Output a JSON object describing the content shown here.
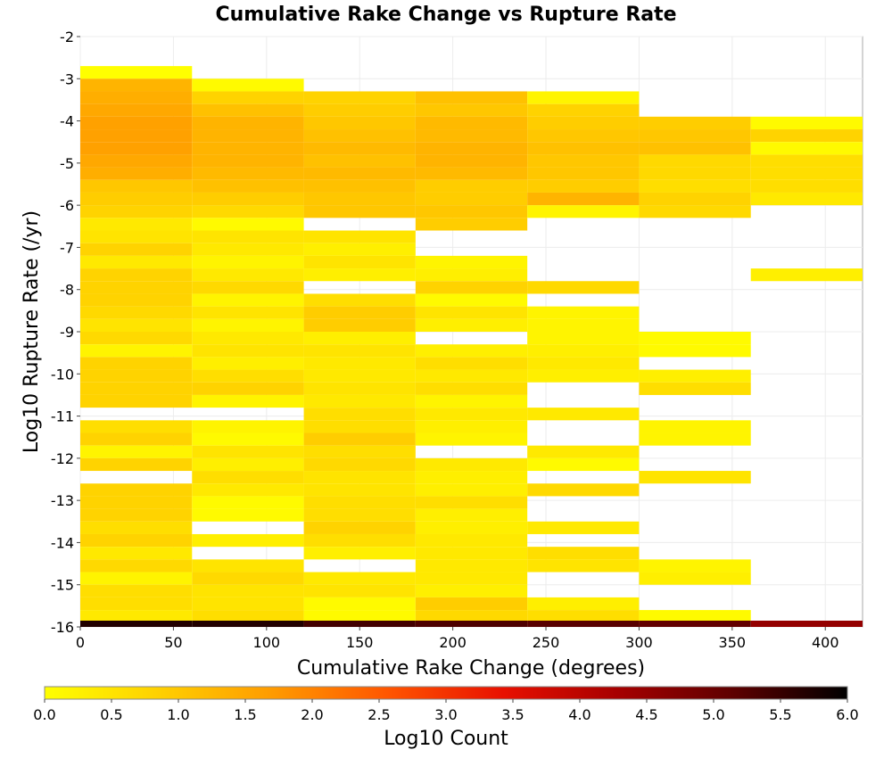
{
  "chart_data": {
    "type": "heatmap",
    "title": "Cumulative Rake Change vs Rupture Rate",
    "xlabel": "Cumulative Rake Change (degrees)",
    "ylabel": "Log10 Rupture Rate (/yr)",
    "xlim": [
      0,
      420
    ],
    "ylim": [
      -16,
      -2
    ],
    "xticks": [
      0,
      50,
      100,
      150,
      200,
      250,
      300,
      350,
      400
    ],
    "yticks": [
      -2,
      -3,
      -4,
      -5,
      -6,
      -7,
      -8,
      -9,
      -10,
      -11,
      -12,
      -13,
      -14,
      -15,
      -16
    ],
    "x_bin_width": 60,
    "y_bin_height": 0.3,
    "colorbar": {
      "label": "Log10 Count",
      "range": [
        0,
        6
      ],
      "ticks": [
        "0.0",
        "0.5",
        "1.0",
        "1.5",
        "2.0",
        "2.5",
        "3.0",
        "3.5",
        "4.0",
        "4.5",
        "5.0",
        "5.5",
        "6.0"
      ],
      "colors": [
        "#ffff00",
        "#ffd000",
        "#ff9a00",
        "#ff5500",
        "#e81000",
        "#a60000",
        "#5e0000",
        "#000000"
      ]
    },
    "grid": true,
    "columns": [
      {
        "x_start": 0,
        "cells": [
          {
            "y": -3.0,
            "z": 0.0
          },
          {
            "y": -3.3,
            "z": 1.3
          },
          {
            "y": -3.6,
            "z": 1.4
          },
          {
            "y": -3.9,
            "z": 1.5
          },
          {
            "y": -4.2,
            "z": 1.6
          },
          {
            "y": -4.5,
            "z": 1.6
          },
          {
            "y": -4.8,
            "z": 1.6
          },
          {
            "y": -5.1,
            "z": 1.5
          },
          {
            "y": -5.4,
            "z": 1.4
          },
          {
            "y": -5.7,
            "z": 1.0
          },
          {
            "y": -6.0,
            "z": 0.9
          },
          {
            "y": -6.3,
            "z": 0.8
          },
          {
            "y": -6.6,
            "z": 0.4
          },
          {
            "y": -6.9,
            "z": 0.5
          },
          {
            "y": -7.2,
            "z": 0.8
          },
          {
            "y": -7.5,
            "z": 0.4
          },
          {
            "y": -7.8,
            "z": 0.8
          },
          {
            "y": -8.1,
            "z": 0.8
          },
          {
            "y": -8.4,
            "z": 0.8
          },
          {
            "y": -8.7,
            "z": 0.7
          },
          {
            "y": -9.0,
            "z": 0.5
          },
          {
            "y": -9.3,
            "z": 0.7
          },
          {
            "y": -9.6,
            "z": 0.2
          },
          {
            "y": -9.9,
            "z": 0.8
          },
          {
            "y": -10.2,
            "z": 0.8
          },
          {
            "y": -10.5,
            "z": 0.8
          },
          {
            "y": -10.8,
            "z": 0.8
          },
          {
            "y": -11.4,
            "z": 0.6
          },
          {
            "y": -11.7,
            "z": 0.8
          },
          {
            "y": -12.0,
            "z": 0.2
          },
          {
            "y": -12.3,
            "z": 0.8
          },
          {
            "y": -12.9,
            "z": 0.8
          },
          {
            "y": -13.2,
            "z": 0.8
          },
          {
            "y": -13.5,
            "z": 0.8
          },
          {
            "y": -13.8,
            "z": 0.6
          },
          {
            "y": -14.1,
            "z": 0.8
          },
          {
            "y": -14.4,
            "z": 0.4
          },
          {
            "y": -14.7,
            "z": 0.7
          },
          {
            "y": -15.0,
            "z": 0.2
          },
          {
            "y": -15.3,
            "z": 0.6
          },
          {
            "y": -15.6,
            "z": 0.6
          },
          {
            "y": -15.9,
            "z": 0.4
          },
          {
            "y": -16.0,
            "z": 5.7
          }
        ]
      },
      {
        "x_start": 60,
        "cells": [
          {
            "y": -3.3,
            "z": 0.1
          },
          {
            "y": -3.6,
            "z": 0.8
          },
          {
            "y": -3.9,
            "z": 1.1
          },
          {
            "y": -4.2,
            "z": 1.3
          },
          {
            "y": -4.5,
            "z": 1.3
          },
          {
            "y": -4.8,
            "z": 1.3
          },
          {
            "y": -5.1,
            "z": 1.3
          },
          {
            "y": -5.4,
            "z": 1.2
          },
          {
            "y": -5.7,
            "z": 1.1
          },
          {
            "y": -6.0,
            "z": 0.9
          },
          {
            "y": -6.3,
            "z": 0.7
          },
          {
            "y": -6.6,
            "z": 0.1
          },
          {
            "y": -6.9,
            "z": 0.5
          },
          {
            "y": -7.2,
            "z": 0.4
          },
          {
            "y": -7.5,
            "z": 0.2
          },
          {
            "y": -7.8,
            "z": 0.4
          },
          {
            "y": -8.1,
            "z": 0.7
          },
          {
            "y": -8.4,
            "z": 0.2
          },
          {
            "y": -8.7,
            "z": 0.5
          },
          {
            "y": -9.0,
            "z": 0.2
          },
          {
            "y": -9.3,
            "z": 0.4
          },
          {
            "y": -9.6,
            "z": 0.5
          },
          {
            "y": -9.9,
            "z": 0.3
          },
          {
            "y": -10.2,
            "z": 0.6
          },
          {
            "y": -10.5,
            "z": 0.8
          },
          {
            "y": -10.8,
            "z": 0.2
          },
          {
            "y": -11.4,
            "z": 0.2
          },
          {
            "y": -11.7,
            "z": 0.1
          },
          {
            "y": -12.0,
            "z": 0.5
          },
          {
            "y": -12.3,
            "z": 0.3
          },
          {
            "y": -12.6,
            "z": 0.6
          },
          {
            "y": -12.9,
            "z": 0.4
          },
          {
            "y": -13.2,
            "z": 0.1
          },
          {
            "y": -13.5,
            "z": 0.1
          },
          {
            "y": -14.1,
            "z": 0.3
          },
          {
            "y": -14.7,
            "z": 0.5
          },
          {
            "y": -15.0,
            "z": 0.7
          },
          {
            "y": -15.3,
            "z": 0.5
          },
          {
            "y": -15.6,
            "z": 0.5
          },
          {
            "y": -15.9,
            "z": 0.6
          },
          {
            "y": -16.0,
            "z": 5.7
          }
        ]
      },
      {
        "x_start": 120,
        "cells": [
          {
            "y": -3.6,
            "z": 0.8
          },
          {
            "y": -3.9,
            "z": 0.9
          },
          {
            "y": -4.2,
            "z": 1.0
          },
          {
            "y": -4.5,
            "z": 1.1
          },
          {
            "y": -4.8,
            "z": 1.2
          },
          {
            "y": -5.1,
            "z": 1.1
          },
          {
            "y": -5.4,
            "z": 1.2
          },
          {
            "y": -5.7,
            "z": 1.1
          },
          {
            "y": -6.0,
            "z": 1.0
          },
          {
            "y": -6.3,
            "z": 1.0
          },
          {
            "y": -6.9,
            "z": 0.5
          },
          {
            "y": -7.2,
            "z": 0.3
          },
          {
            "y": -7.5,
            "z": 0.5
          },
          {
            "y": -7.8,
            "z": 0.3
          },
          {
            "y": -8.4,
            "z": 0.6
          },
          {
            "y": -8.7,
            "z": 0.9
          },
          {
            "y": -9.0,
            "z": 0.9
          },
          {
            "y": -9.3,
            "z": 0.3
          },
          {
            "y": -9.6,
            "z": 0.5
          },
          {
            "y": -9.9,
            "z": 0.4
          },
          {
            "y": -10.2,
            "z": 0.4
          },
          {
            "y": -10.5,
            "z": 0.5
          },
          {
            "y": -10.8,
            "z": 0.4
          },
          {
            "y": -11.1,
            "z": 0.6
          },
          {
            "y": -11.4,
            "z": 0.6
          },
          {
            "y": -11.7,
            "z": 0.9
          },
          {
            "y": -12.0,
            "z": 0.6
          },
          {
            "y": -12.3,
            "z": 0.7
          },
          {
            "y": -12.6,
            "z": 0.5
          },
          {
            "y": -12.9,
            "z": 0.5
          },
          {
            "y": -13.2,
            "z": 0.6
          },
          {
            "y": -13.5,
            "z": 0.6
          },
          {
            "y": -13.8,
            "z": 0.8
          },
          {
            "y": -14.1,
            "z": 0.6
          },
          {
            "y": -14.4,
            "z": 0.3
          },
          {
            "y": -15.0,
            "z": 0.4
          },
          {
            "y": -15.3,
            "z": 0.5
          },
          {
            "y": -15.6,
            "z": 0.1
          },
          {
            "y": -15.9,
            "z": 0.1
          },
          {
            "y": -16.0,
            "z": 5.4
          }
        ]
      },
      {
        "x_start": 180,
        "cells": [
          {
            "y": -3.6,
            "z": 1.1
          },
          {
            "y": -3.9,
            "z": 1.0
          },
          {
            "y": -4.2,
            "z": 1.2
          },
          {
            "y": -4.5,
            "z": 1.2
          },
          {
            "y": -4.8,
            "z": 1.3
          },
          {
            "y": -5.1,
            "z": 1.3
          },
          {
            "y": -5.4,
            "z": 1.2
          },
          {
            "y": -5.7,
            "z": 0.9
          },
          {
            "y": -6.0,
            "z": 0.9
          },
          {
            "y": -6.3,
            "z": 1.0
          },
          {
            "y": -6.6,
            "z": 0.9
          },
          {
            "y": -7.5,
            "z": 0.2
          },
          {
            "y": -7.8,
            "z": 0.3
          },
          {
            "y": -8.1,
            "z": 0.8
          },
          {
            "y": -8.4,
            "z": 0.1
          },
          {
            "y": -8.7,
            "z": 0.5
          },
          {
            "y": -9.0,
            "z": 0.3
          },
          {
            "y": -9.6,
            "z": 0.3
          },
          {
            "y": -9.9,
            "z": 0.6
          },
          {
            "y": -10.2,
            "z": 0.4
          },
          {
            "y": -10.5,
            "z": 0.6
          },
          {
            "y": -10.8,
            "z": 0.2
          },
          {
            "y": -11.1,
            "z": 0.4
          },
          {
            "y": -11.4,
            "z": 0.3
          },
          {
            "y": -11.7,
            "z": 0.2
          },
          {
            "y": -12.3,
            "z": 0.4
          },
          {
            "y": -12.6,
            "z": 0.3
          },
          {
            "y": -12.9,
            "z": 0.3
          },
          {
            "y": -13.2,
            "z": 0.6
          },
          {
            "y": -13.5,
            "z": 0.3
          },
          {
            "y": -13.8,
            "z": 0.3
          },
          {
            "y": -14.1,
            "z": 0.4
          },
          {
            "y": -14.4,
            "z": 0.4
          },
          {
            "y": -14.7,
            "z": 0.4
          },
          {
            "y": -15.0,
            "z": 0.4
          },
          {
            "y": -15.3,
            "z": 0.3
          },
          {
            "y": -15.6,
            "z": 0.9
          },
          {
            "y": -15.9,
            "z": 0.7
          },
          {
            "y": -16.0,
            "z": 5.3
          }
        ]
      },
      {
        "x_start": 240,
        "cells": [
          {
            "y": -3.6,
            "z": 0.2
          },
          {
            "y": -3.9,
            "z": 0.8
          },
          {
            "y": -4.2,
            "z": 0.9
          },
          {
            "y": -4.5,
            "z": 1.0
          },
          {
            "y": -4.8,
            "z": 1.1
          },
          {
            "y": -5.1,
            "z": 1.0
          },
          {
            "y": -5.4,
            "z": 1.0
          },
          {
            "y": -5.7,
            "z": 0.9
          },
          {
            "y": -6.0,
            "z": 1.3
          },
          {
            "y": -6.3,
            "z": 0.2
          },
          {
            "y": -8.1,
            "z": 0.7
          },
          {
            "y": -8.7,
            "z": 0.2
          },
          {
            "y": -9.0,
            "z": 0.2
          },
          {
            "y": -9.3,
            "z": 0.2
          },
          {
            "y": -9.6,
            "z": 0.3
          },
          {
            "y": -9.9,
            "z": 0.4
          },
          {
            "y": -10.2,
            "z": 0.3
          },
          {
            "y": -11.1,
            "z": 0.4
          },
          {
            "y": -12.0,
            "z": 0.4
          },
          {
            "y": -12.3,
            "z": 0.1
          },
          {
            "y": -12.9,
            "z": 0.7
          },
          {
            "y": -13.8,
            "z": 0.4
          },
          {
            "y": -14.4,
            "z": 0.6
          },
          {
            "y": -14.7,
            "z": 0.5
          },
          {
            "y": -15.6,
            "z": 0.3
          },
          {
            "y": -15.9,
            "z": 0.6
          },
          {
            "y": -16.0,
            "z": 5.2
          }
        ]
      },
      {
        "x_start": 300,
        "cells": [
          {
            "y": -4.2,
            "z": 0.9
          },
          {
            "y": -4.5,
            "z": 1.0
          },
          {
            "y": -4.8,
            "z": 1.1
          },
          {
            "y": -5.1,
            "z": 0.7
          },
          {
            "y": -5.4,
            "z": 0.7
          },
          {
            "y": -5.7,
            "z": 0.6
          },
          {
            "y": -6.0,
            "z": 0.8
          },
          {
            "y": -6.3,
            "z": 0.7
          },
          {
            "y": -9.3,
            "z": 0.1
          },
          {
            "y": -9.6,
            "z": 0.1
          },
          {
            "y": -10.2,
            "z": 0.3
          },
          {
            "y": -10.5,
            "z": 0.6
          },
          {
            "y": -11.4,
            "z": 0.2
          },
          {
            "y": -11.7,
            "z": 0.2
          },
          {
            "y": -12.6,
            "z": 0.5
          },
          {
            "y": -14.7,
            "z": 0.2
          },
          {
            "y": -15.0,
            "z": 0.3
          },
          {
            "y": -15.9,
            "z": 0.1
          },
          {
            "y": -16.0,
            "z": 5.1
          }
        ]
      },
      {
        "x_start": 360,
        "cells": [
          {
            "y": -4.2,
            "z": 0.1
          },
          {
            "y": -4.5,
            "z": 0.8
          },
          {
            "y": -4.8,
            "z": 0.1
          },
          {
            "y": -5.1,
            "z": 0.6
          },
          {
            "y": -5.4,
            "z": 0.6
          },
          {
            "y": -5.7,
            "z": 0.6
          },
          {
            "y": -6.0,
            "z": 0.4
          },
          {
            "y": -7.8,
            "z": 0.3
          },
          {
            "y": -16.0,
            "z": 4.5
          }
        ]
      }
    ]
  }
}
